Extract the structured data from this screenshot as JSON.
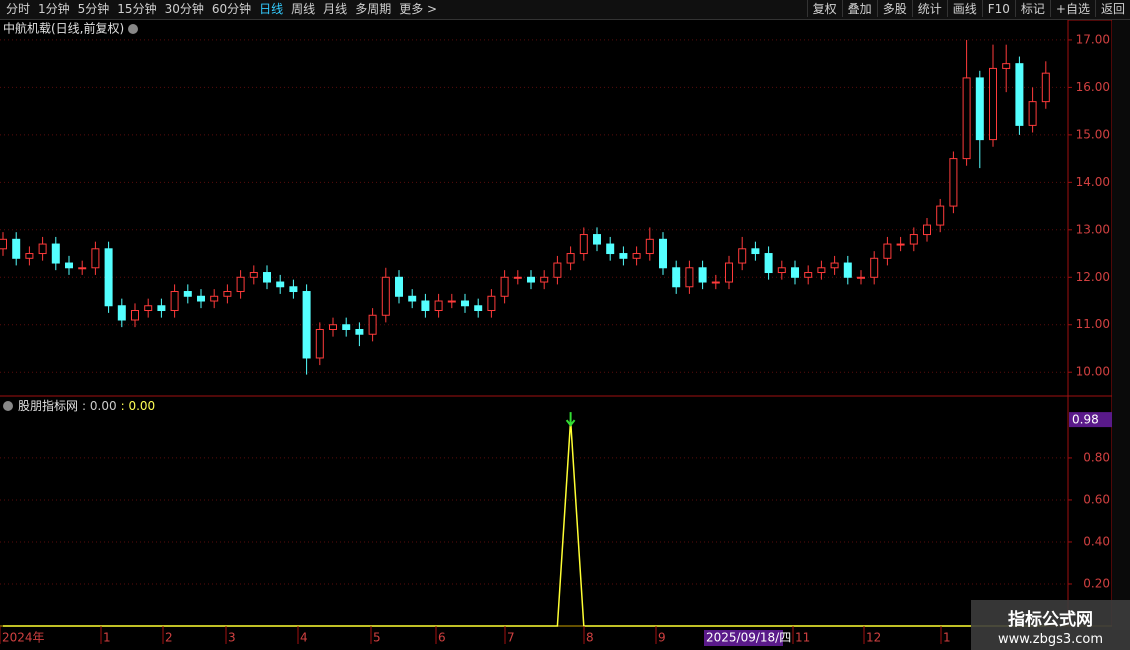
{
  "toolbar": {
    "left": [
      "分时",
      "1分钟",
      "5分钟",
      "15分钟",
      "30分钟",
      "60分钟",
      "日线",
      "周线",
      "月线",
      "多周期",
      "更多 >"
    ],
    "active": "日线",
    "right": [
      "复权",
      "叠加",
      "多股",
      "统计",
      "画线",
      "F10",
      "标记",
      "+自选",
      "返回"
    ]
  },
  "chart_data": [
    {
      "type": "candlestick",
      "title": "中航机载(日线,前复权)",
      "up_color": "#ff3b3b",
      "down_color": "#54ffff",
      "grid": true,
      "ylim": [
        9.52,
        17.42
      ],
      "yticks": [
        {
          "value": 10,
          "label": "10.00"
        },
        {
          "value": 11,
          "label": "11.00"
        },
        {
          "value": 12,
          "label": "12.00"
        },
        {
          "value": 13,
          "label": "13.00"
        },
        {
          "value": 14,
          "label": "14.00"
        },
        {
          "value": 15,
          "label": "15.00"
        },
        {
          "value": 16,
          "label": "16.00"
        },
        {
          "value": 17,
          "label": "17.00"
        }
      ],
      "open": [
        12.6,
        12.8,
        12.4,
        12.5,
        12.7,
        12.3,
        12.2,
        12.2,
        12.6,
        11.4,
        11.1,
        11.3,
        11.4,
        11.3,
        11.7,
        11.6,
        11.5,
        11.6,
        11.7,
        12.0,
        12.1,
        11.9,
        11.8,
        11.7,
        10.3,
        10.9,
        11.0,
        10.9,
        10.8,
        11.2,
        12.0,
        11.6,
        11.5,
        11.3,
        11.5,
        11.5,
        11.4,
        11.3,
        11.6,
        12.0,
        12.0,
        11.9,
        12.0,
        12.3,
        12.5,
        12.9,
        12.7,
        12.5,
        12.4,
        12.5,
        12.8,
        12.2,
        11.8,
        12.2,
        11.9,
        11.9,
        12.3,
        12.6,
        12.5,
        12.1,
        12.2,
        12.0,
        12.1,
        12.2,
        12.3,
        12.0,
        12.0,
        12.4,
        12.7,
        12.7,
        12.9,
        13.1,
        13.5,
        14.5,
        16.2,
        14.9,
        16.4,
        16.5,
        15.2,
        15.7
      ],
      "close": [
        12.8,
        12.4,
        12.5,
        12.7,
        12.3,
        12.2,
        12.2,
        12.6,
        11.4,
        11.1,
        11.3,
        11.4,
        11.3,
        11.7,
        11.6,
        11.5,
        11.6,
        11.7,
        12.0,
        12.1,
        11.9,
        11.8,
        11.7,
        10.3,
        10.9,
        11.0,
        10.9,
        10.8,
        11.2,
        12.0,
        11.6,
        11.5,
        11.3,
        11.5,
        11.5,
        11.4,
        11.3,
        11.6,
        12.0,
        12.0,
        11.9,
        12.0,
        12.3,
        12.5,
        12.9,
        12.7,
        12.5,
        12.4,
        12.5,
        12.8,
        12.2,
        11.8,
        12.2,
        11.9,
        11.9,
        12.3,
        12.6,
        12.5,
        12.1,
        12.2,
        12.0,
        12.1,
        12.2,
        12.3,
        12.0,
        12.0,
        12.4,
        12.7,
        12.7,
        12.9,
        13.1,
        13.5,
        14.5,
        16.2,
        14.9,
        16.4,
        16.5,
        15.2,
        15.7,
        16.3
      ],
      "high": [
        12.95,
        12.95,
        12.65,
        12.85,
        12.85,
        12.45,
        12.35,
        12.75,
        12.75,
        11.55,
        11.45,
        11.55,
        11.55,
        11.85,
        11.85,
        11.75,
        11.75,
        11.85,
        12.15,
        12.25,
        12.25,
        12.05,
        11.95,
        11.85,
        11.05,
        11.15,
        11.15,
        11.05,
        11.35,
        12.2,
        12.15,
        11.75,
        11.65,
        11.65,
        11.65,
        11.65,
        11.55,
        11.75,
        12.15,
        12.15,
        12.15,
        12.15,
        12.45,
        12.65,
        13.05,
        13.05,
        12.85,
        12.65,
        12.65,
        13.05,
        12.95,
        12.35,
        12.35,
        12.35,
        12.05,
        12.45,
        12.85,
        12.75,
        12.65,
        12.35,
        12.35,
        12.25,
        12.35,
        12.45,
        12.45,
        12.15,
        12.55,
        12.85,
        12.85,
        13.05,
        13.25,
        13.65,
        14.65,
        17.0,
        16.35,
        16.9,
        16.9,
        16.65,
        16.0,
        16.55
      ],
      "low": [
        12.45,
        12.25,
        12.25,
        12.35,
        12.15,
        12.05,
        12.05,
        12.05,
        11.25,
        10.95,
        10.95,
        11.15,
        11.15,
        11.15,
        11.45,
        11.35,
        11.35,
        11.45,
        11.55,
        11.85,
        11.75,
        11.65,
        11.55,
        9.95,
        10.15,
        10.75,
        10.75,
        10.55,
        10.65,
        11.05,
        11.45,
        11.35,
        11.15,
        11.15,
        11.35,
        11.25,
        11.15,
        11.15,
        11.45,
        11.85,
        11.75,
        11.75,
        11.85,
        12.15,
        12.35,
        12.55,
        12.35,
        12.25,
        12.25,
        12.35,
        12.05,
        11.65,
        11.65,
        11.75,
        11.75,
        11.75,
        12.15,
        12.35,
        11.95,
        11.95,
        11.85,
        11.85,
        11.95,
        12.05,
        11.85,
        11.85,
        11.85,
        12.25,
        12.55,
        12.55,
        12.75,
        12.95,
        13.35,
        14.35,
        14.3,
        14.75,
        15.9,
        15.0,
        15.05,
        15.55
      ]
    },
    {
      "type": "line",
      "title": "股朋指标网",
      "readouts": [
        ": 0.00",
        ": 0.00"
      ],
      "readout_colors": [
        "#cccccc",
        "#ffff55"
      ],
      "color": "#ffff33",
      "signal_color": "#33dd33",
      "grid": true,
      "ylim": [
        0,
        1.09
      ],
      "yticks": [
        {
          "value": 0.2,
          "label": "0.20"
        },
        {
          "value": 0.4,
          "label": "0.40"
        },
        {
          "value": 0.6,
          "label": "0.60"
        },
        {
          "value": 0.8,
          "label": "0.80"
        }
      ],
      "marker_label": {
        "value": 0.98,
        "label": "0.98"
      },
      "values": [
        0,
        0,
        0,
        0,
        0,
        0,
        0,
        0,
        0,
        0,
        0,
        0,
        0,
        0,
        0,
        0,
        0,
        0,
        0,
        0,
        0,
        0,
        0,
        0,
        0,
        0,
        0,
        0,
        0,
        0,
        0,
        0,
        0,
        0,
        0,
        0,
        0,
        0,
        0,
        0,
        0,
        0,
        0,
        0.98,
        0,
        0,
        0,
        0,
        0,
        0,
        0,
        0,
        0,
        0,
        0,
        0,
        0,
        0,
        0,
        0,
        0,
        0,
        0,
        0,
        0,
        0,
        0,
        0,
        0,
        0,
        0,
        0,
        0,
        0,
        0,
        0,
        0,
        0,
        0,
        0
      ]
    }
  ],
  "x_axis_labels": [
    "2024年",
    "1",
    "2",
    "3",
    "4",
    "5",
    "6",
    "7",
    "8",
    "9",
    "11",
    "12",
    "1"
  ],
  "cursor_label": "2025/09/18/四",
  "watermark": {
    "title": "指标公式网",
    "url": "www.zbgs3.com"
  }
}
